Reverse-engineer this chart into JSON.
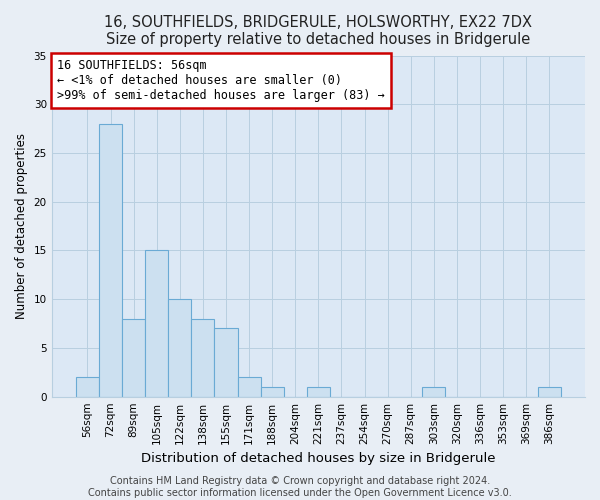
{
  "title": "16, SOUTHFIELDS, BRIDGERULE, HOLSWORTHY, EX22 7DX",
  "subtitle": "Size of property relative to detached houses in Bridgerule",
  "xlabel": "Distribution of detached houses by size in Bridgerule",
  "ylabel": "Number of detached properties",
  "bar_color": "#cce0f0",
  "bar_edge_color": "#6aaad4",
  "bg_color": "#e8eef5",
  "plot_bg_color": "#dce8f5",
  "categories": [
    "56sqm",
    "72sqm",
    "89sqm",
    "105sqm",
    "122sqm",
    "138sqm",
    "155sqm",
    "171sqm",
    "188sqm",
    "204sqm",
    "221sqm",
    "237sqm",
    "254sqm",
    "270sqm",
    "287sqm",
    "303sqm",
    "320sqm",
    "336sqm",
    "353sqm",
    "369sqm",
    "386sqm"
  ],
  "values": [
    2,
    28,
    8,
    15,
    10,
    8,
    7,
    2,
    1,
    0,
    1,
    0,
    0,
    0,
    0,
    1,
    0,
    0,
    0,
    0,
    1
  ],
  "ylim": [
    0,
    35
  ],
  "yticks": [
    0,
    5,
    10,
    15,
    20,
    25,
    30,
    35
  ],
  "annotation_title": "16 SOUTHFIELDS: 56sqm",
  "annotation_line1": "← <1% of detached houses are smaller (0)",
  "annotation_line2": ">99% of semi-detached houses are larger (83) →",
  "annotation_box_color": "#ffffff",
  "annotation_box_edge": "#cc0000",
  "footer_line1": "Contains HM Land Registry data © Crown copyright and database right 2024.",
  "footer_line2": "Contains public sector information licensed under the Open Government Licence v3.0.",
  "title_fontsize": 10.5,
  "xlabel_fontsize": 9.5,
  "ylabel_fontsize": 8.5,
  "tick_fontsize": 7.5,
  "annotation_fontsize": 8.5,
  "footer_fontsize": 7
}
